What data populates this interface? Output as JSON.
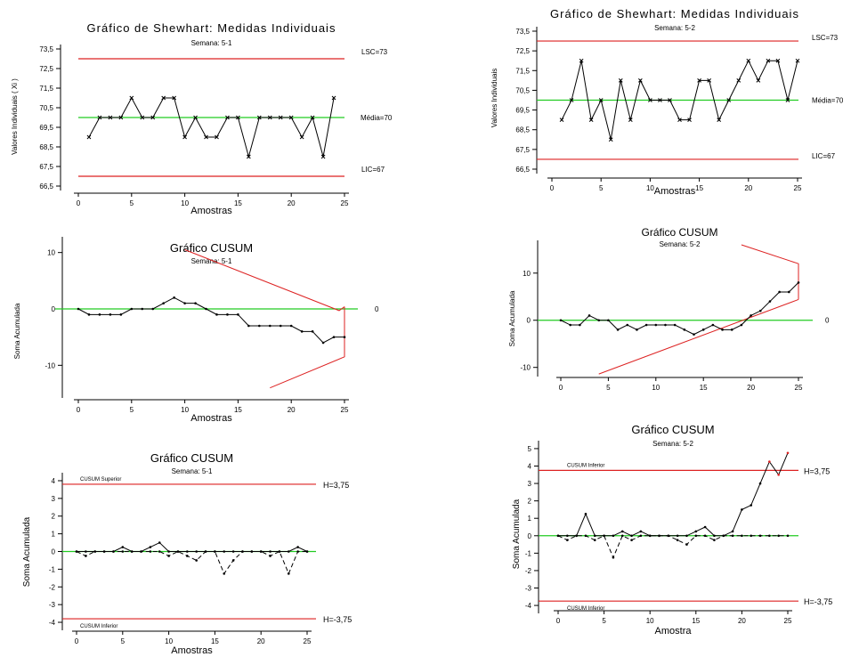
{
  "colors": {
    "limit": "#dd2222",
    "center": "#22cc22",
    "series": "#000000",
    "axis": "#000000"
  },
  "chart_data": [
    {
      "type": "line",
      "title": "Gráfico de Shewhart: Medidas Individuais",
      "subtitle": "Semana: 5-1",
      "xlabel": "Amostras",
      "ylabel": "Valores Individuais ( Xi )",
      "xlim": [
        0,
        25
      ],
      "ylim": [
        66.5,
        73.5
      ],
      "x_ticks": [
        "0",
        "5",
        "10",
        "15",
        "20",
        "25"
      ],
      "y_ticks": [
        "66,5",
        "67,5",
        "68,5",
        "69,5",
        "70,5",
        "71,5",
        "72,5",
        "73,5"
      ],
      "x": [
        1,
        2,
        3,
        4,
        5,
        6,
        7,
        8,
        9,
        10,
        11,
        12,
        13,
        14,
        15,
        16,
        17,
        18,
        19,
        20,
        21,
        22,
        23,
        24
      ],
      "values": [
        69,
        70,
        70,
        70,
        71,
        70,
        70,
        71,
        71,
        69,
        70,
        69,
        69,
        70,
        70,
        68,
        70,
        70,
        70,
        70,
        69,
        70,
        68,
        71
      ],
      "lines": [
        {
          "label": "LSC=73",
          "y": 73,
          "role": "limit"
        },
        {
          "label": "Média=70",
          "y": 70,
          "role": "center"
        },
        {
          "label": "LIC=67",
          "y": 67,
          "role": "limit"
        }
      ]
    },
    {
      "type": "line",
      "title": "Gráfico de Shewhart: Medidas Individuais",
      "subtitle": "Semana: 5-2",
      "xlabel": "Amostras",
      "ylabel": "Valores Individuais",
      "xlim": [
        0,
        25
      ],
      "ylim": [
        66.5,
        73.5
      ],
      "x_ticks": [
        "0",
        "5",
        "10",
        "15",
        "20",
        "25"
      ],
      "y_ticks": [
        "66,5",
        "67,5",
        "68,5",
        "69,5",
        "70,5",
        "71,5",
        "72,5",
        "73,5"
      ],
      "x": [
        1,
        2,
        3,
        4,
        5,
        6,
        7,
        8,
        9,
        10,
        11,
        12,
        13,
        14,
        15,
        16,
        17,
        18,
        19,
        20,
        21,
        22,
        23,
        24,
        25
      ],
      "values": [
        69,
        70,
        72,
        69,
        70,
        68,
        71,
        69,
        71,
        70,
        70,
        70,
        69,
        69,
        71,
        71,
        69,
        70,
        71,
        72,
        71,
        72,
        72,
        70,
        72
      ],
      "lines": [
        {
          "label": "LSC=73",
          "y": 73,
          "role": "limit"
        },
        {
          "label": "Média=70",
          "y": 70,
          "role": "center"
        },
        {
          "label": "LIC=67",
          "y": 67,
          "role": "limit"
        }
      ]
    },
    {
      "type": "line",
      "title": "Gráfico CUSUM",
      "subtitle": "Semana: 5-1",
      "xlabel": "Amostras",
      "ylabel": "Soma Acumulada",
      "xlim": [
        0,
        25
      ],
      "ylim": [
        -15,
        12
      ],
      "x_ticks": [
        "0",
        "5",
        "10",
        "15",
        "20",
        "25"
      ],
      "y_ticks": [
        {
          "label": "10",
          "value": 10
        },
        {
          "label": "0",
          "value": 0
        },
        {
          "label": "-10",
          "value": -10
        }
      ],
      "x": [
        0,
        1,
        2,
        3,
        4,
        5,
        6,
        7,
        8,
        9,
        10,
        11,
        12,
        13,
        14,
        15,
        16,
        17,
        18,
        19,
        20,
        21,
        22,
        23,
        24,
        25
      ],
      "values": [
        0,
        -1,
        -1,
        -1,
        -1,
        0,
        0,
        0,
        1,
        2,
        1,
        1,
        0,
        -1,
        -1,
        -1,
        -3,
        -3,
        -3,
        -3,
        -3,
        -4,
        -4,
        -6,
        -5,
        -5
      ],
      "center": {
        "y": 0,
        "label": "0"
      },
      "v_mask": {
        "upper": [
          [
            10,
            10.5
          ],
          [
            24.5,
            -0.3
          ],
          [
            25,
            0.4
          ]
        ],
        "lower": [
          [
            25,
            0.4
          ],
          [
            25,
            -8.5
          ],
          [
            18,
            -14
          ]
        ]
      }
    },
    {
      "type": "line",
      "title": "Gráfico CUSUM",
      "subtitle": "Semana: 5-2",
      "xlabel": "",
      "ylabel": "Soma Acumulada",
      "xlim": [
        0,
        25
      ],
      "ylim": [
        -11,
        16
      ],
      "x_ticks": [
        "0",
        "5",
        "10",
        "15",
        "20",
        "25"
      ],
      "y_ticks": [
        {
          "label": "10",
          "value": 10
        },
        {
          "label": "0",
          "value": 0
        },
        {
          "label": "-10",
          "value": -10
        }
      ],
      "x": [
        0,
        1,
        2,
        3,
        4,
        5,
        6,
        7,
        8,
        9,
        10,
        11,
        12,
        13,
        14,
        15,
        16,
        17,
        18,
        19,
        20,
        21,
        22,
        23,
        24,
        25
      ],
      "values": [
        0,
        -1,
        -1,
        1,
        0,
        0,
        -2,
        -1,
        -2,
        -1,
        -1,
        -1,
        -1,
        -2,
        -3,
        -2,
        -1,
        -2,
        -2,
        -1,
        1,
        2,
        4,
        6,
        6,
        8
      ],
      "center": {
        "y": 0,
        "label": "0"
      },
      "v_mask": {
        "upper": [
          [
            19,
            16
          ],
          [
            25,
            12
          ],
          [
            25,
            4.4
          ]
        ],
        "lower": [
          [
            25,
            4.4
          ],
          [
            4,
            -11.4
          ]
        ]
      }
    },
    {
      "type": "line",
      "title": "Gráfico CUSUM",
      "subtitle": "Semana: 5-1",
      "xlabel": "Amostras",
      "ylabel": "Soma Acumulada",
      "xlim": [
        0,
        25
      ],
      "ylim": [
        -4.2,
        4.2
      ],
      "x_ticks": [
        "0",
        "5",
        "10",
        "15",
        "20",
        "25"
      ],
      "y_ticks": [
        "-4",
        "-3",
        "-2",
        "-1",
        "0",
        "1",
        "2",
        "3",
        "4"
      ],
      "x": [
        0,
        1,
        2,
        3,
        4,
        5,
        6,
        7,
        8,
        9,
        10,
        11,
        12,
        13,
        14,
        15,
        16,
        17,
        18,
        19,
        20,
        21,
        22,
        23,
        24,
        25
      ],
      "series": [
        {
          "style": "solid",
          "values": [
            0,
            0,
            0,
            0,
            0,
            0.25,
            0,
            0,
            0.25,
            0.5,
            0,
            0,
            0,
            0,
            0,
            0,
            0,
            0,
            0,
            0,
            0,
            0,
            0,
            0,
            0.25,
            0
          ]
        },
        {
          "style": "dashed",
          "values": [
            0,
            -0.25,
            0,
            0,
            0,
            0,
            0,
            0,
            0,
            0,
            -0.25,
            0,
            -0.25,
            -0.5,
            0,
            0,
            -1.25,
            -0.5,
            0,
            0,
            0,
            -0.25,
            0,
            -1.25,
            0,
            0
          ]
        }
      ],
      "lines": [
        {
          "label": "CUSUM Superior",
          "y": 3.8,
          "role": "limit",
          "right_label": "H=3,75"
        },
        {
          "label": "CUSUM Inferior",
          "y": -3.8,
          "role": "limit",
          "right_label": "H=-3,75"
        }
      ],
      "center": {
        "y": 0
      }
    },
    {
      "type": "line",
      "title": "Gráfico CUSUM",
      "subtitle": "Semana: 5-2",
      "xlabel": "Amostra",
      "ylabel": "Soma Acumulada",
      "xlim": [
        0,
        25
      ],
      "ylim": [
        -4.2,
        5.2
      ],
      "x_ticks": [
        "0",
        "5",
        "10",
        "15",
        "20",
        "25"
      ],
      "y_ticks": [
        "-4",
        "-3",
        "-2",
        "-1",
        "0",
        "1",
        "2",
        "3",
        "4",
        "5"
      ],
      "x": [
        0,
        1,
        2,
        3,
        4,
        5,
        6,
        7,
        8,
        9,
        10,
        11,
        12,
        13,
        14,
        15,
        16,
        17,
        18,
        19,
        20,
        21,
        22,
        23,
        24,
        25
      ],
      "series": [
        {
          "style": "solid",
          "values": [
            0,
            0,
            0,
            1.25,
            0,
            0,
            0,
            0.25,
            0,
            0.25,
            0,
            0,
            0,
            0,
            0,
            0.25,
            0.5,
            0,
            0,
            0.25,
            1.5,
            1.75,
            3,
            4.25,
            3.5,
            4.75
          ]
        },
        {
          "style": "dashed",
          "values": [
            0,
            -0.25,
            0,
            0,
            -0.25,
            0,
            -1.25,
            0,
            -0.25,
            0,
            0,
            0,
            0,
            -0.25,
            -0.5,
            0,
            0,
            -0.25,
            0,
            0,
            0,
            0,
            0,
            0,
            0,
            0
          ]
        }
      ],
      "lines": [
        {
          "label": "CUSUM Inferior",
          "y": 3.75,
          "role": "limit",
          "right_label": "H=3,75"
        },
        {
          "label": "CUSUM Inferior",
          "y": -3.75,
          "role": "limit",
          "right_label": "H=-3,75"
        }
      ],
      "center": {
        "y": 0
      }
    }
  ]
}
